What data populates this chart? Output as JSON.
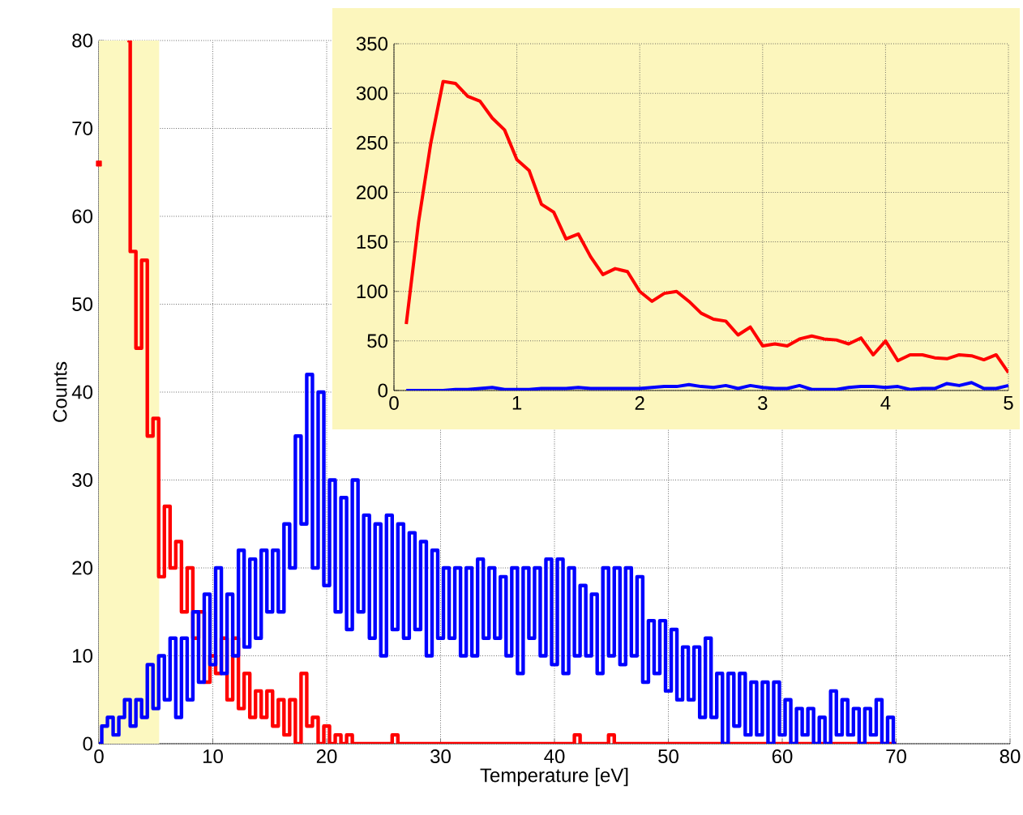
{
  "chart_data": [
    {
      "type": "step",
      "xlabel": "Temperature [eV]",
      "ylabel": "Counts",
      "xlim": [
        0,
        80
      ],
      "ylim": [
        0,
        80
      ],
      "xticks": [
        0,
        10,
        20,
        30,
        40,
        50,
        60,
        70,
        80
      ],
      "yticks": [
        0,
        10,
        20,
        30,
        40,
        50,
        60,
        70,
        80
      ],
      "grid": true,
      "bands": [
        {
          "axis": "x",
          "from": 0,
          "to": 5.3,
          "color": "#fcf8c0"
        }
      ],
      "x": [
        0,
        0.5,
        1,
        1.5,
        2,
        2.5,
        3,
        3.5,
        4,
        4.5,
        5,
        5.5,
        6,
        6.5,
        7,
        7.5,
        8,
        8.5,
        9,
        9.5,
        10,
        10.5,
        11,
        11.5,
        12,
        12.5,
        13,
        13.5,
        14,
        14.5,
        15,
        15.5,
        16,
        16.5,
        17,
        17.5,
        18,
        18.5,
        19,
        19.5,
        20,
        20.5,
        21,
        21.5,
        22,
        22.5,
        23,
        23.5,
        24,
        24.5,
        25,
        25.5,
        26,
        26.5,
        27,
        27.5,
        28,
        28.5,
        29,
        29.5,
        30,
        30.5,
        31,
        31.5,
        32,
        32.5,
        33,
        33.5,
        34,
        34.5,
        35,
        35.5,
        36,
        36.5,
        37,
        37.5,
        38,
        38.5,
        39,
        39.5,
        40,
        40.5,
        41,
        41.5,
        42,
        42.5,
        43,
        43.5,
        44,
        44.5,
        45,
        45.5,
        46,
        46.5,
        47,
        47.5,
        48,
        48.5,
        49,
        49.5,
        50,
        50.5,
        51,
        51.5,
        52,
        52.5,
        53,
        53.5,
        54,
        54.5,
        55,
        55.5,
        56,
        56.5,
        57,
        57.5,
        58,
        58.5,
        59,
        59.5,
        60,
        60.5,
        61,
        61.5,
        62,
        62.5,
        63,
        63.5,
        64,
        64.5,
        65,
        65.5,
        66,
        66.5,
        67,
        67.5,
        68,
        68.5,
        69,
        69.5,
        70
      ],
      "series": [
        {
          "color": "#ff0000",
          "values": [
            66,
            null,
            null,
            null,
            null,
            80,
            56,
            45,
            55,
            35,
            37,
            19,
            27,
            20,
            23,
            15,
            20,
            12,
            15,
            7,
            10,
            8,
            12,
            5,
            12,
            4,
            8,
            3,
            6,
            3,
            6,
            2,
            5,
            1,
            5,
            0,
            8,
            2,
            3,
            0,
            2,
            0,
            1,
            0,
            1,
            0,
            0,
            0,
            0,
            0,
            0,
            0,
            1,
            0,
            0,
            0,
            0,
            0,
            0,
            0,
            0,
            0,
            0,
            0,
            0,
            0,
            0,
            0,
            0,
            0,
            0,
            0,
            0,
            0,
            0,
            0,
            0,
            0,
            0,
            0,
            0,
            0,
            0,
            0,
            1,
            0,
            0,
            0,
            0,
            0,
            1,
            0,
            0,
            0,
            0,
            0,
            0,
            0,
            0,
            0,
            0,
            0,
            0,
            0,
            0,
            0,
            0,
            0,
            0,
            0,
            0,
            0,
            0,
            0,
            0,
            0,
            0,
            0,
            0,
            0,
            0,
            0,
            0,
            0,
            0,
            0,
            0,
            0,
            0,
            0,
            0,
            0,
            0,
            0,
            0,
            0,
            0,
            0,
            0,
            0,
            0
          ]
        },
        {
          "color": "#0000ff",
          "values": [
            0,
            2,
            3,
            1,
            3,
            5,
            2,
            5,
            3,
            9,
            4,
            10,
            5,
            12,
            3,
            12,
            5,
            15,
            7,
            17,
            9,
            20,
            8,
            17,
            10,
            22,
            11,
            21,
            12,
            22,
            15,
            22,
            15,
            25,
            20,
            35,
            25,
            42,
            20,
            40,
            18,
            30,
            15,
            28,
            13,
            30,
            15,
            26,
            12,
            25,
            10,
            26,
            13,
            25,
            12,
            24,
            13,
            23,
            10,
            22,
            12,
            20,
            12,
            20,
            10,
            20,
            10,
            21,
            12,
            20,
            12,
            19,
            10,
            20,
            8,
            20,
            12,
            20,
            10,
            21,
            9,
            21,
            8,
            20,
            10,
            18,
            10,
            17,
            8,
            20,
            10,
            20,
            9,
            20,
            10,
            19,
            7,
            14,
            8,
            14,
            6,
            13,
            5,
            11,
            5,
            11,
            3,
            12,
            3,
            8,
            0,
            8,
            2,
            8,
            1,
            7,
            1,
            7,
            0,
            7,
            1,
            5,
            0,
            4,
            1,
            4,
            0,
            3,
            0,
            6,
            1,
            5,
            1,
            4,
            0,
            4,
            1,
            5,
            0,
            3,
            0
          ]
        }
      ]
    },
    {
      "type": "line",
      "xlim": [
        0,
        5
      ],
      "ylim": [
        0,
        350
      ],
      "xticks": [
        0,
        1,
        2,
        3,
        4,
        5
      ],
      "yticks": [
        0,
        50,
        100,
        150,
        200,
        250,
        300,
        350
      ],
      "grid": true,
      "bands": [
        {
          "axis": "x",
          "from": 0,
          "to": 5,
          "color": "#fcf6bd"
        }
      ],
      "x": [
        0.1,
        0.2,
        0.3,
        0.4,
        0.5,
        0.6,
        0.7,
        0.8,
        0.9,
        1.0,
        1.1,
        1.2,
        1.3,
        1.4,
        1.5,
        1.6,
        1.7,
        1.8,
        1.9,
        2.0,
        2.1,
        2.2,
        2.3,
        2.4,
        2.5,
        2.6,
        2.7,
        2.8,
        2.9,
        3.0,
        3.1,
        3.2,
        3.3,
        3.4,
        3.5,
        3.6,
        3.7,
        3.8,
        3.9,
        4.0,
        4.1,
        4.2,
        4.3,
        4.4,
        4.5,
        4.6,
        4.7,
        4.8,
        4.9,
        5.0
      ],
      "series": [
        {
          "color": "#ff0000",
          "values": [
            67,
            170,
            250,
            312,
            310,
            297,
            292,
            275,
            263,
            233,
            222,
            188,
            180,
            153,
            158,
            135,
            117,
            123,
            120,
            100,
            90,
            98,
            100,
            90,
            78,
            72,
            70,
            56,
            64,
            45,
            47,
            45,
            52,
            55,
            52,
            51,
            47,
            53,
            36,
            50,
            30,
            36,
            36,
            33,
            32,
            36,
            35,
            31,
            36,
            18
          ]
        },
        {
          "color": "#0000ff",
          "values": [
            0,
            0,
            0,
            0,
            1,
            1,
            2,
            3,
            1,
            1,
            1,
            2,
            2,
            2,
            3,
            2,
            2,
            2,
            2,
            2,
            3,
            4,
            4,
            6,
            4,
            3,
            5,
            2,
            5,
            3,
            2,
            2,
            5,
            1,
            1,
            1,
            3,
            4,
            4,
            3,
            4,
            1,
            2,
            2,
            7,
            5,
            8,
            2,
            2,
            5
          ]
        }
      ]
    }
  ]
}
